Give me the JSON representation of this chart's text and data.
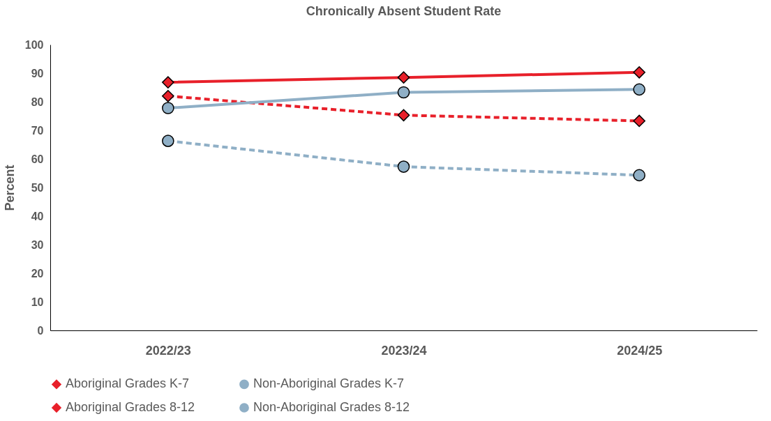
{
  "chart_data": {
    "type": "line",
    "title": "Chronically Absent Student Rate",
    "ylabel": "Percent",
    "categories": [
      "2022/23",
      "2023/24",
      "2024/25"
    ],
    "series": [
      {
        "name": "Aboriginal Grades K-7",
        "color": "#e8202a",
        "marker": "diamond",
        "line_style": "dashed",
        "values": [
          82,
          75.3,
          73.3
        ]
      },
      {
        "name": "Non-Aboriginal Grades K-7",
        "color": "#8fafc6",
        "marker": "circle",
        "line_style": "dashed",
        "values": [
          66.3,
          57.3,
          54.3
        ]
      },
      {
        "name": "Aboriginal Grades 8-12",
        "color": "#e8202a",
        "marker": "diamond",
        "line_style": "solid",
        "values": [
          86.8,
          88.5,
          90.3
        ]
      },
      {
        "name": "Non-Aboriginal Grades 8-12",
        "color": "#8fafc6",
        "marker": "circle",
        "line_style": "solid",
        "values": [
          77.8,
          83.3,
          84.3
        ]
      }
    ],
    "ylim": [
      0,
      100
    ],
    "yticks": [
      0,
      10,
      20,
      30,
      40,
      50,
      60,
      70,
      80,
      90,
      100
    ],
    "grid": false,
    "legend": "bottom"
  }
}
